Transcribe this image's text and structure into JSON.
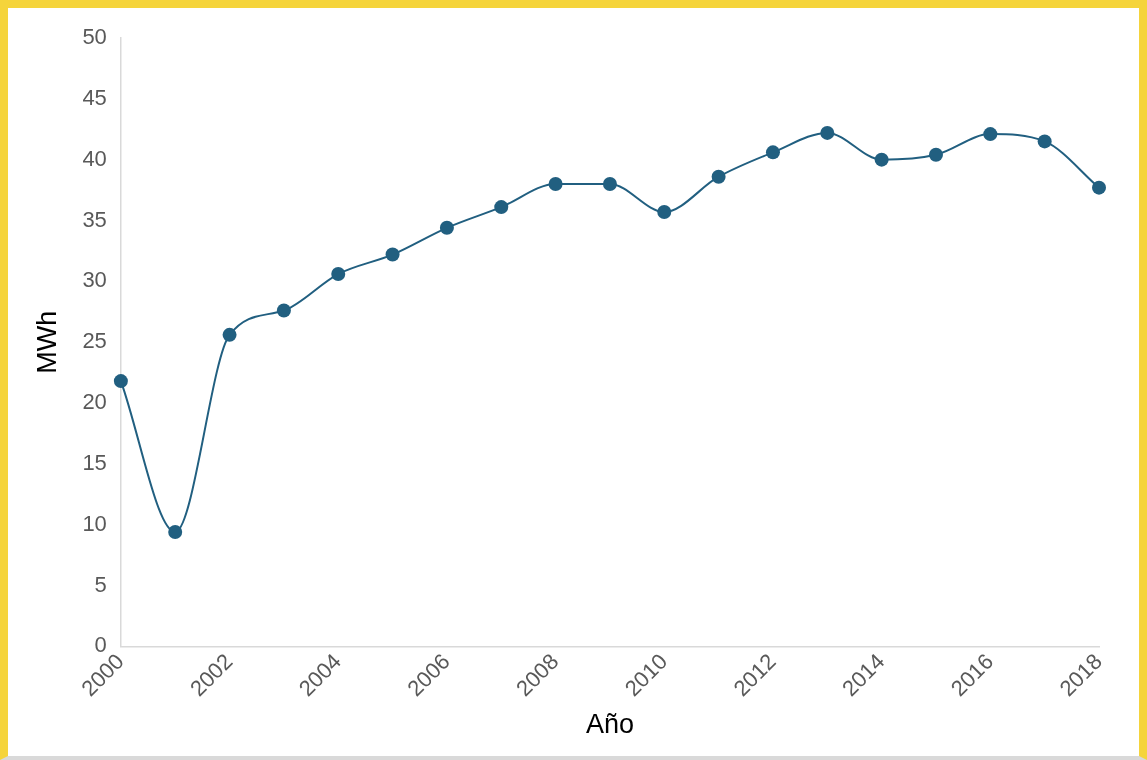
{
  "chart_data": {
    "type": "line",
    "xlabel": "Año",
    "ylabel": "MWh",
    "x": [
      2000,
      2001,
      2002,
      2003,
      2004,
      2005,
      2006,
      2007,
      2008,
      2009,
      2010,
      2011,
      2012,
      2013,
      2014,
      2015,
      2016,
      2017,
      2018
    ],
    "series": [
      {
        "color": "#215f80",
        "values": [
          21.8,
          9.4,
          25.6,
          27.6,
          30.6,
          32.2,
          34.4,
          36.1,
          38.0,
          38.0,
          35.7,
          38.6,
          40.6,
          42.2,
          40.0,
          40.4,
          42.1,
          41.5,
          37.7
        ]
      }
    ],
    "xlim": [
      2000,
      2018
    ],
    "xticks": [
      2000,
      2002,
      2004,
      2006,
      2008,
      2010,
      2012,
      2014,
      2016,
      2018
    ],
    "ylim": [
      0,
      50
    ],
    "yticks": [
      0,
      5,
      10,
      15,
      20,
      25,
      30,
      35,
      40,
      45,
      50
    ],
    "grid": false,
    "legend": false,
    "marker": "circle",
    "line_style": "solid"
  }
}
